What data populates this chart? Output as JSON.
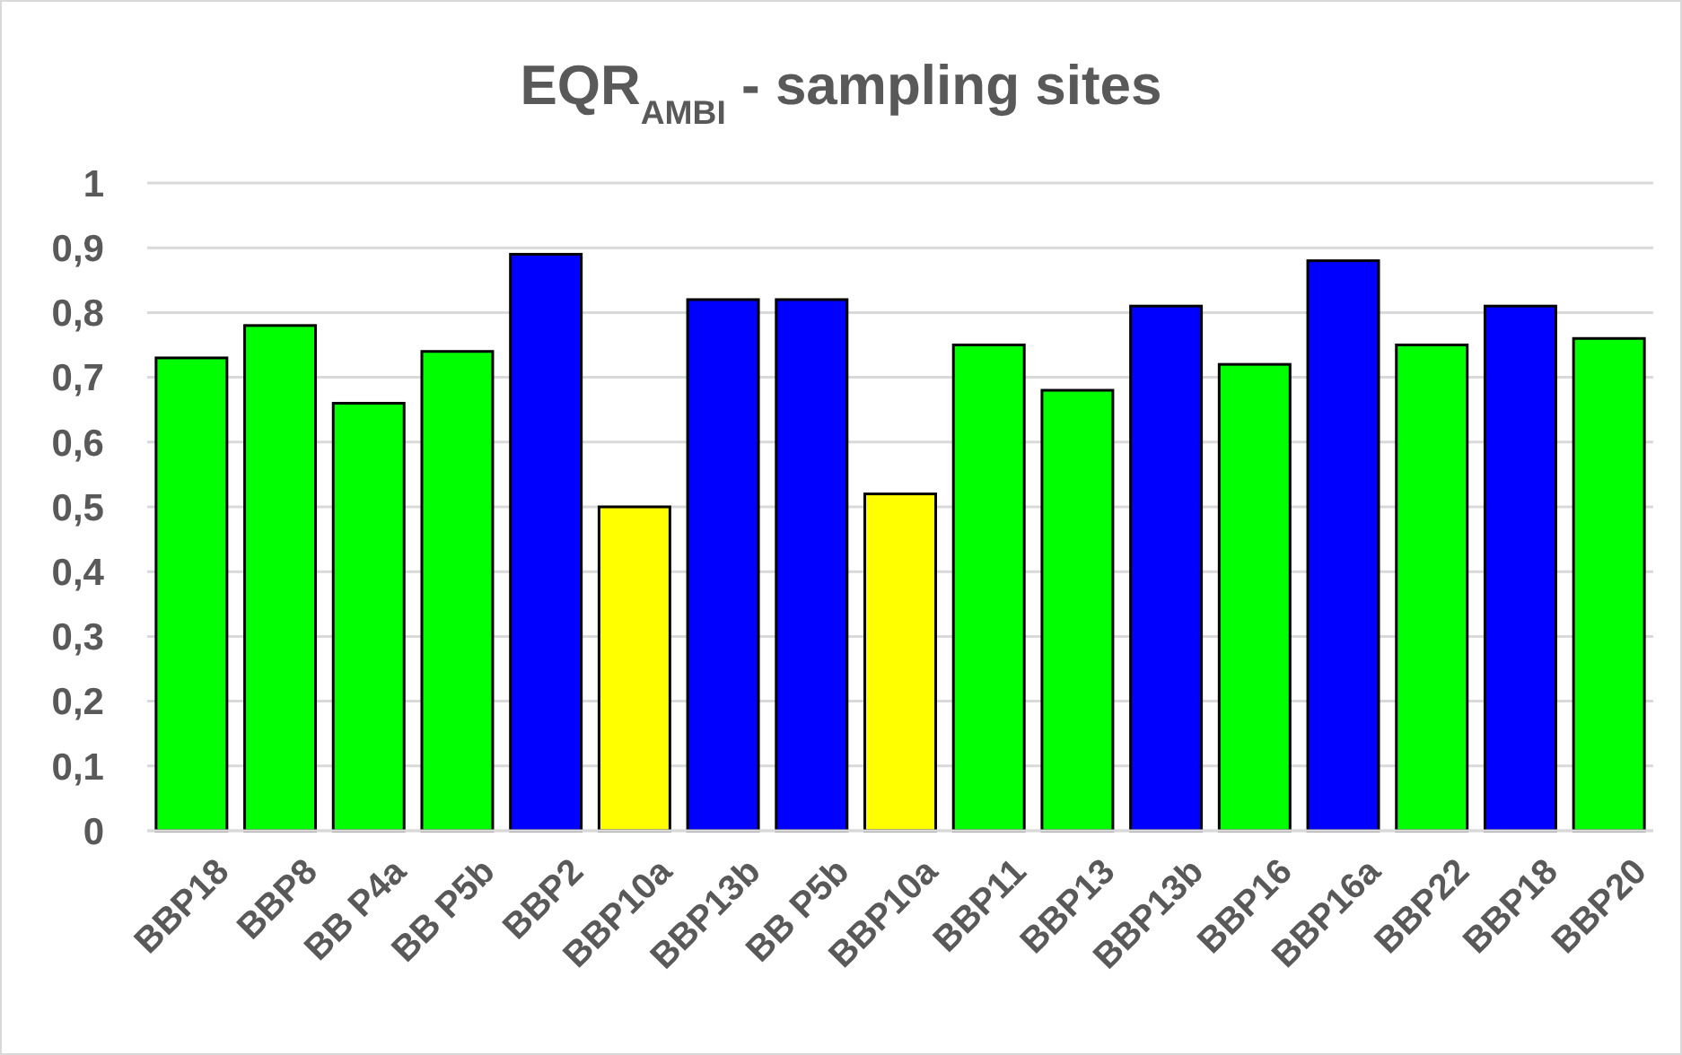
{
  "chart_data": {
    "type": "bar",
    "title": "EQR$_{AMBI}$ - sampling sites",
    "categories": [
      "BBP18",
      "BBP8",
      "BB P4a",
      "BB P5b",
      "BBP2",
      "BBP10a",
      "BBP13b",
      "BB P5b",
      "BBP10a",
      "BBP11",
      "BBP13",
      "BBP13b",
      "BBP16",
      "BBP16a",
      "BBP22",
      "BBP18",
      "BBP20"
    ],
    "values": [
      0.73,
      0.78,
      0.66,
      0.74,
      0.89,
      0.5,
      0.82,
      0.82,
      0.52,
      0.75,
      0.68,
      0.81,
      0.72,
      0.88,
      0.75,
      0.81,
      0.76
    ],
    "colors": [
      "#00ff00",
      "#00ff00",
      "#00ff00",
      "#00ff00",
      "#0000ff",
      "#ffff00",
      "#0000ff",
      "#0000ff",
      "#ffff00",
      "#00ff00",
      "#00ff00",
      "#0000ff",
      "#00ff00",
      "#0000ff",
      "#00ff00",
      "#0000ff",
      "#00ff00"
    ],
    "ylim": [
      0,
      1
    ],
    "yticks": [
      0,
      {
        "value": 0.1,
        "label": "0,1"
      },
      {
        "value": 0.2,
        "label": "0,2"
      },
      {
        "value": 0.3,
        "label": "0,3"
      },
      {
        "value": 0.4,
        "label": "0,4"
      },
      {
        "value": 0.5,
        "label": "0,5"
      },
      {
        "value": 0.6,
        "label": "0,6"
      },
      {
        "value": 0.7,
        "label": "0,7"
      },
      {
        "value": 0.8,
        "label": "0,8"
      },
      {
        "value": 0.9,
        "label": "0,9"
      },
      1
    ],
    "grid": "y"
  }
}
